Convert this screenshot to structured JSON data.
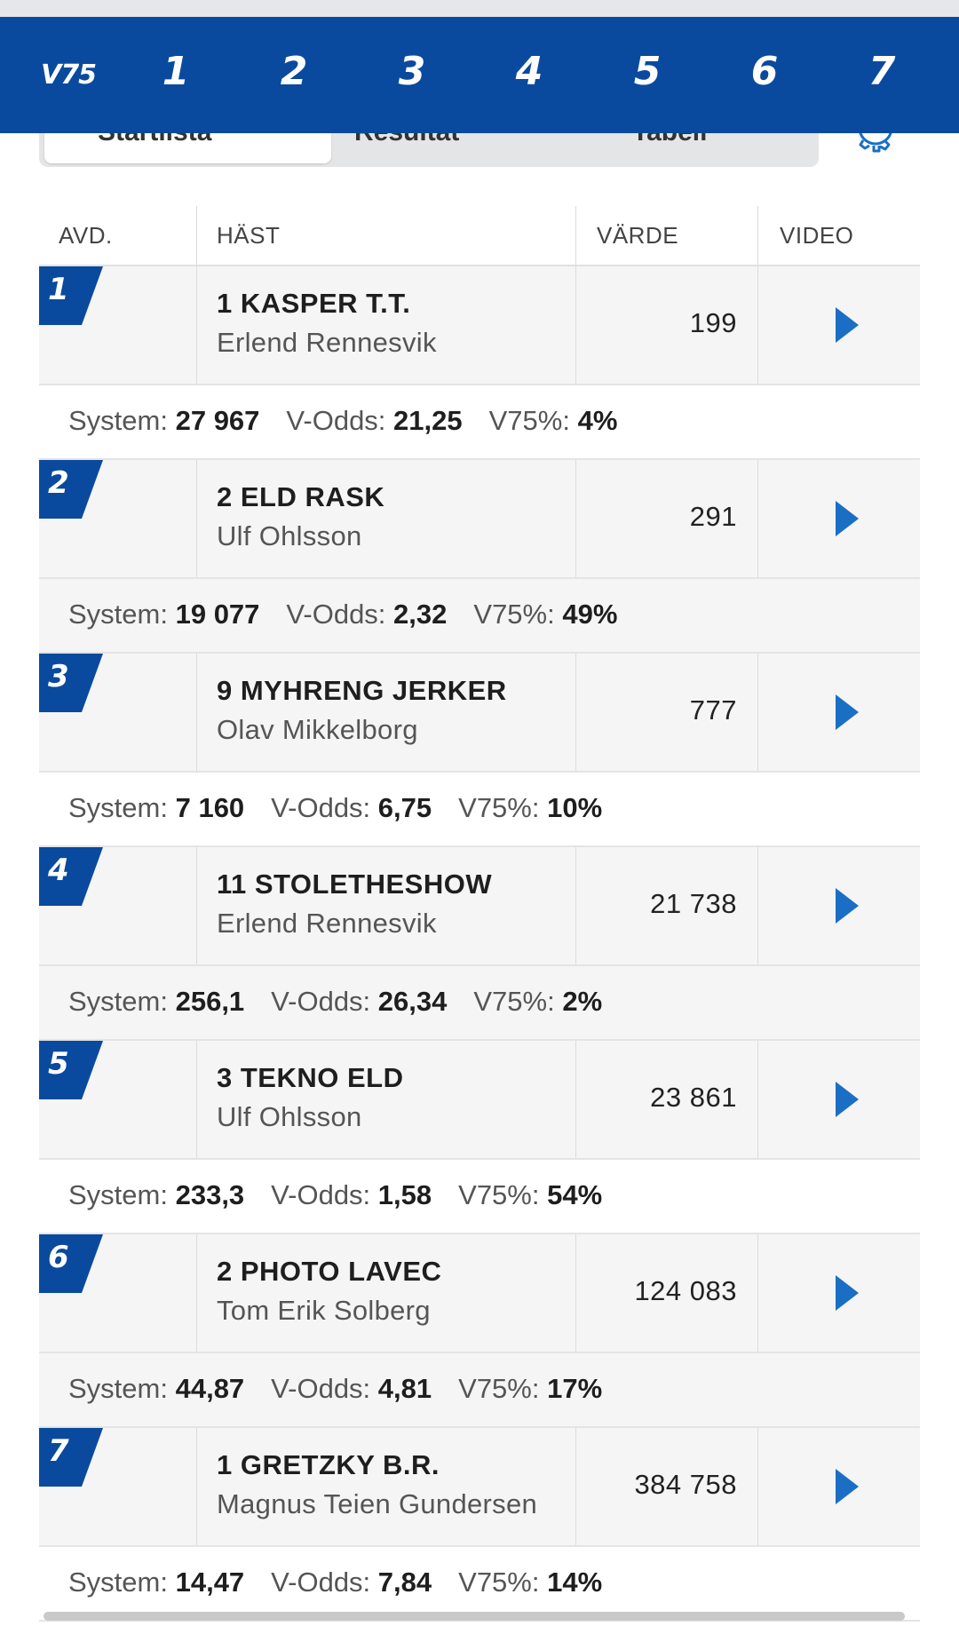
{
  "nav": {
    "brand": "V75",
    "races": [
      "1",
      "2",
      "3",
      "4",
      "5",
      "6",
      "7"
    ]
  },
  "tabs": {
    "items": [
      "Startlista",
      "Resultat",
      "Tabell"
    ],
    "active": "Startlista"
  },
  "table": {
    "headers": {
      "avd": "AVD.",
      "hast": "HÄST",
      "varde": "VÄRDE",
      "video": "VIDEO"
    },
    "stat_labels": {
      "system": "System:",
      "vodds": "V-Odds:",
      "pct": "V75%:"
    },
    "legs": [
      {
        "avd": "1",
        "horse": "1 KASPER T.T.",
        "driver": "Erlend Rennesvik",
        "value": "199",
        "system": "27 967",
        "vodds": "21,25",
        "pct": "4%"
      },
      {
        "avd": "2",
        "horse": "2 ELD RASK",
        "driver": "Ulf Ohlsson",
        "value": "291",
        "system": "19 077",
        "vodds": "2,32",
        "pct": "49%"
      },
      {
        "avd": "3",
        "horse": "9 MYHRENG JERKER",
        "driver": "Olav Mikkelborg",
        "value": "777",
        "system": "7 160",
        "vodds": "6,75",
        "pct": "10%"
      },
      {
        "avd": "4",
        "horse": "11 STOLETHESHOW",
        "driver": "Erlend Rennesvik",
        "value": "21 738",
        "system": "256,1",
        "vodds": "26,34",
        "pct": "2%"
      },
      {
        "avd": "5",
        "horse": "3 TEKNO ELD",
        "driver": "Ulf Ohlsson",
        "value": "23 861",
        "system": "233,3",
        "vodds": "1,58",
        "pct": "54%"
      },
      {
        "avd": "6",
        "horse": "2 PHOTO LAVEC",
        "driver": "Tom Erik Solberg",
        "value": "124 083",
        "system": "44,87",
        "vodds": "4,81",
        "pct": "17%"
      },
      {
        "avd": "7",
        "horse": "1 GRETZKY B.R.",
        "driver": "Magnus Teien Gundersen",
        "value": "384 758",
        "system": "14,47",
        "vodds": "7,84",
        "pct": "14%"
      }
    ]
  },
  "colors": {
    "brand_blue": "#0a4a9e",
    "play_blue": "#1a6fc4"
  },
  "icons": {
    "play": "play-icon",
    "settings": "gear-icon"
  }
}
